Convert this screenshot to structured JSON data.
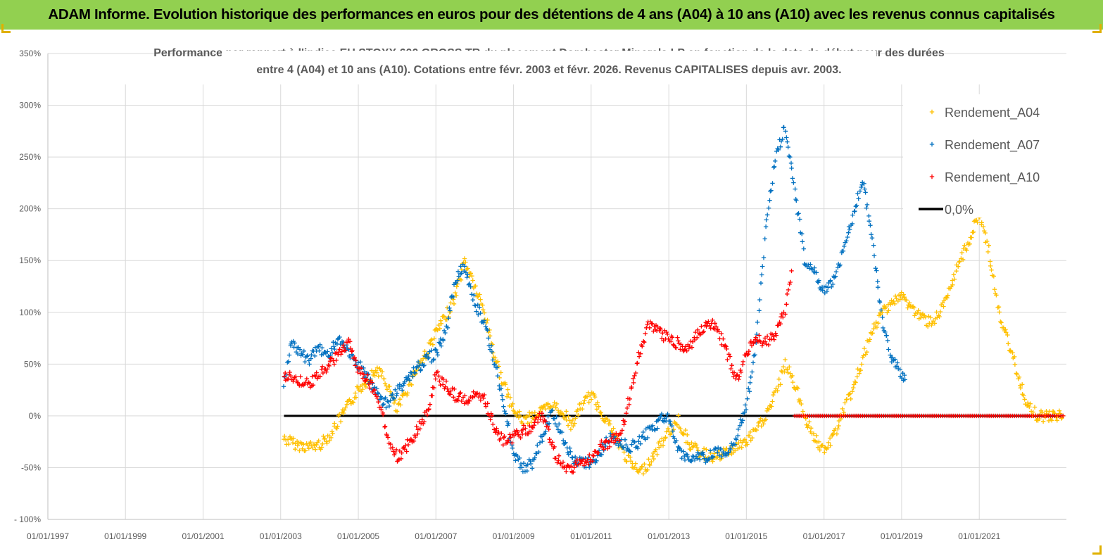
{
  "header": {
    "title": "ADAM Informe. Evolution historique des performances en euros pour des détentions de 4 ans (A04) à 10 ans (A10) avec les revenus connus capitalisés"
  },
  "colors": {
    "header_bg": "#92d050",
    "a04": "#ffc000",
    "a07": "#0070c0",
    "a10": "#ff0000",
    "zero": "#000000",
    "grid": "#d9d9d9"
  },
  "chart_data": {
    "type": "scatter",
    "title_lines": [
      "Performance par rapport à l'indice EU STOXX 600 GROSS TR  du placement Dorchester Minerals LP en fonction de la date de début pour des durées",
      "entre 4 (A04) et 10 ans (A10). Cotations entre févr. 2003 et févr. 2026. Revenus CAPITALISES depuis avr. 2003."
    ],
    "xlim": [
      "1997-01-01",
      "2023-04-01"
    ],
    "ylim": [
      -100,
      350
    ],
    "y_ticks": [
      350,
      300,
      250,
      200,
      150,
      100,
      50,
      0,
      -50,
      -100
    ],
    "y_tick_labels": [
      "350%",
      "300%",
      "250%",
      "200%",
      "150%",
      "100%",
      "50%",
      "0%",
      "-50%",
      "- 100%"
    ],
    "x_ticks": [
      "1997-01-01",
      "1999-01-01",
      "2001-01-01",
      "2003-01-01",
      "2005-01-01",
      "2007-01-01",
      "2009-01-01",
      "2011-01-01",
      "2013-01-01",
      "2015-01-01",
      "2017-01-01",
      "2019-01-01",
      "2021-01-01"
    ],
    "x_tick_labels": [
      "01/01/1997",
      "01/01/1999",
      "01/01/2001",
      "01/01/2003",
      "01/01/2005",
      "01/01/2007",
      "01/01/2009",
      "01/01/2011",
      "01/01/2013",
      "01/01/2015",
      "01/01/2017",
      "01/01/2019",
      "01/01/2021"
    ],
    "grid": true,
    "legend_position": "top-right",
    "series": [
      {
        "name": "Rendement_A04",
        "color": "#ffc000",
        "marker": "+",
        "x": [
          "2003-02-01",
          "2003-06-01",
          "2003-10-01",
          "2004-01-01",
          "2004-04-01",
          "2004-07-01",
          "2004-10-01",
          "2005-01-01",
          "2005-04-01",
          "2005-07-01",
          "2005-10-01",
          "2006-01-01",
          "2006-04-01",
          "2006-07-01",
          "2006-10-01",
          "2007-01-01",
          "2007-04-01",
          "2007-07-01",
          "2007-10-01",
          "2008-01-01",
          "2008-04-01",
          "2008-07-01",
          "2008-10-01",
          "2009-01-01",
          "2009-04-01",
          "2009-07-01",
          "2009-10-01",
          "2010-01-01",
          "2010-04-01",
          "2010-07-01",
          "2010-10-01",
          "2011-01-01",
          "2011-04-01",
          "2011-07-01",
          "2011-10-01",
          "2012-01-01",
          "2012-04-01",
          "2012-07-01",
          "2012-10-01",
          "2013-01-01",
          "2013-04-01",
          "2013-07-01",
          "2013-10-01",
          "2014-01-01",
          "2014-04-01",
          "2014-07-01",
          "2014-10-01",
          "2015-01-01",
          "2015-04-01",
          "2015-07-01",
          "2015-10-01",
          "2016-01-01",
          "2016-04-01",
          "2016-07-01",
          "2016-10-01",
          "2017-01-01",
          "2017-04-01",
          "2017-07-01",
          "2017-10-01",
          "2018-01-01",
          "2018-04-01",
          "2018-07-01",
          "2018-10-01",
          "2019-01-01",
          "2019-04-01",
          "2019-07-01",
          "2019-10-01",
          "2020-01-01",
          "2020-04-01",
          "2020-07-01",
          "2020-10-01",
          "2021-01-01",
          "2021-04-01",
          "2021-07-01",
          "2021-10-01",
          "2022-01-01",
          "2022-04-01",
          "2022-07-01",
          "2022-10-01",
          "2023-01-01",
          "2023-03-01"
        ],
        "y": [
          -22,
          -28,
          -30,
          -28,
          -20,
          -5,
          10,
          25,
          35,
          45,
          30,
          5,
          25,
          45,
          60,
          80,
          95,
          115,
          150,
          125,
          100,
          60,
          30,
          5,
          -5,
          0,
          5,
          10,
          5,
          -10,
          10,
          20,
          5,
          -10,
          -30,
          -45,
          -55,
          -45,
          -30,
          -15,
          -5,
          -25,
          -35,
          -38,
          -40,
          -35,
          -30,
          -25,
          -15,
          0,
          20,
          50,
          30,
          0,
          -20,
          -35,
          -20,
          5,
          25,
          55,
          80,
          100,
          110,
          115,
          105,
          95,
          90,
          100,
          120,
          150,
          170,
          195,
          160,
          100,
          70,
          40,
          10,
          0,
          0,
          0,
          0
        ]
      },
      {
        "name": "Rendement_A07",
        "color": "#0070c0",
        "marker": "+",
        "x": [
          "2003-02-01",
          "2003-04-01",
          "2003-07-01",
          "2003-10-01",
          "2004-01-01",
          "2004-04-01",
          "2004-07-01",
          "2004-10-01",
          "2005-01-01",
          "2005-04-01",
          "2005-07-01",
          "2005-10-01",
          "2006-01-01",
          "2006-04-01",
          "2006-07-01",
          "2006-10-01",
          "2007-01-01",
          "2007-04-01",
          "2007-07-01",
          "2007-10-01",
          "2008-01-01",
          "2008-04-01",
          "2008-07-01",
          "2008-10-01",
          "2009-01-01",
          "2009-04-01",
          "2009-07-01",
          "2009-10-01",
          "2010-01-01",
          "2010-04-01",
          "2010-07-01",
          "2010-10-01",
          "2011-01-01",
          "2011-04-01",
          "2011-07-01",
          "2011-10-01",
          "2012-01-01",
          "2012-04-01",
          "2012-07-01",
          "2012-10-01",
          "2013-01-01",
          "2013-04-01",
          "2013-07-01",
          "2013-10-01",
          "2014-01-01",
          "2014-04-01",
          "2014-07-01",
          "2014-10-01",
          "2015-01-01",
          "2015-04-01",
          "2015-07-01",
          "2015-10-01",
          "2016-01-01",
          "2016-04-01",
          "2016-07-01",
          "2016-10-01",
          "2017-01-01",
          "2017-04-01",
          "2017-07-01",
          "2017-10-01",
          "2018-01-01",
          "2018-04-01",
          "2018-07-01",
          "2018-10-01",
          "2019-01-01",
          "2019-02-01"
        ],
        "y": [
          30,
          70,
          60,
          55,
          65,
          60,
          75,
          60,
          50,
          35,
          20,
          10,
          25,
          35,
          45,
          55,
          60,
          80,
          130,
          145,
          110,
          90,
          55,
          10,
          -35,
          -50,
          -45,
          -20,
          5,
          -20,
          -40,
          -45,
          -45,
          -35,
          -20,
          -25,
          -30,
          -25,
          -15,
          -5,
          0,
          -35,
          -40,
          -38,
          -40,
          -35,
          -40,
          -20,
          10,
          70,
          180,
          250,
          280,
          220,
          150,
          140,
          120,
          130,
          160,
          190,
          230,
          170,
          90,
          55,
          40,
          35
        ]
      },
      {
        "name": "Rendement_A10",
        "color": "#ff0000",
        "marker": "+",
        "x": [
          "2003-02-01",
          "2003-06-01",
          "2003-10-01",
          "2004-01-01",
          "2004-04-01",
          "2004-07-01",
          "2004-10-01",
          "2005-01-01",
          "2005-04-01",
          "2005-07-01",
          "2005-10-01",
          "2006-01-01",
          "2006-04-01",
          "2006-07-01",
          "2006-10-01",
          "2007-01-01",
          "2007-04-01",
          "2007-07-01",
          "2007-10-01",
          "2008-01-01",
          "2008-04-01",
          "2008-07-01",
          "2008-10-01",
          "2009-01-01",
          "2009-04-01",
          "2009-07-01",
          "2009-10-01",
          "2010-01-01",
          "2010-04-01",
          "2010-07-01",
          "2010-10-01",
          "2011-01-01",
          "2011-04-01",
          "2011-07-01",
          "2011-10-01",
          "2012-01-01",
          "2012-04-01",
          "2012-07-01",
          "2012-10-01",
          "2013-01-01",
          "2013-04-01",
          "2013-07-01",
          "2013-10-01",
          "2014-01-01",
          "2014-04-01",
          "2014-07-01",
          "2014-10-01",
          "2015-01-01",
          "2015-04-01",
          "2015-07-01",
          "2015-10-01",
          "2016-01-01",
          "2016-03-01"
        ],
        "y": [
          40,
          35,
          30,
          40,
          50,
          60,
          70,
          45,
          35,
          20,
          -20,
          -40,
          -30,
          -15,
          0,
          40,
          30,
          20,
          15,
          20,
          15,
          -10,
          -25,
          -20,
          -15,
          -10,
          0,
          -30,
          -50,
          -50,
          -45,
          -40,
          -30,
          -25,
          -20,
          20,
          60,
          90,
          80,
          75,
          70,
          65,
          80,
          90,
          85,
          60,
          35,
          60,
          75,
          70,
          80,
          100,
          140
        ]
      }
    ],
    "reference_line": {
      "name": "0,0%",
      "color": "#000000",
      "y": 0,
      "x_start": "2003-02-01",
      "x_end": "2023-03-01"
    },
    "flat_zero_a10": {
      "color": "#ff0000",
      "x_start": "2016-04-01",
      "x_end": "2023-03-01",
      "y": 0
    }
  }
}
